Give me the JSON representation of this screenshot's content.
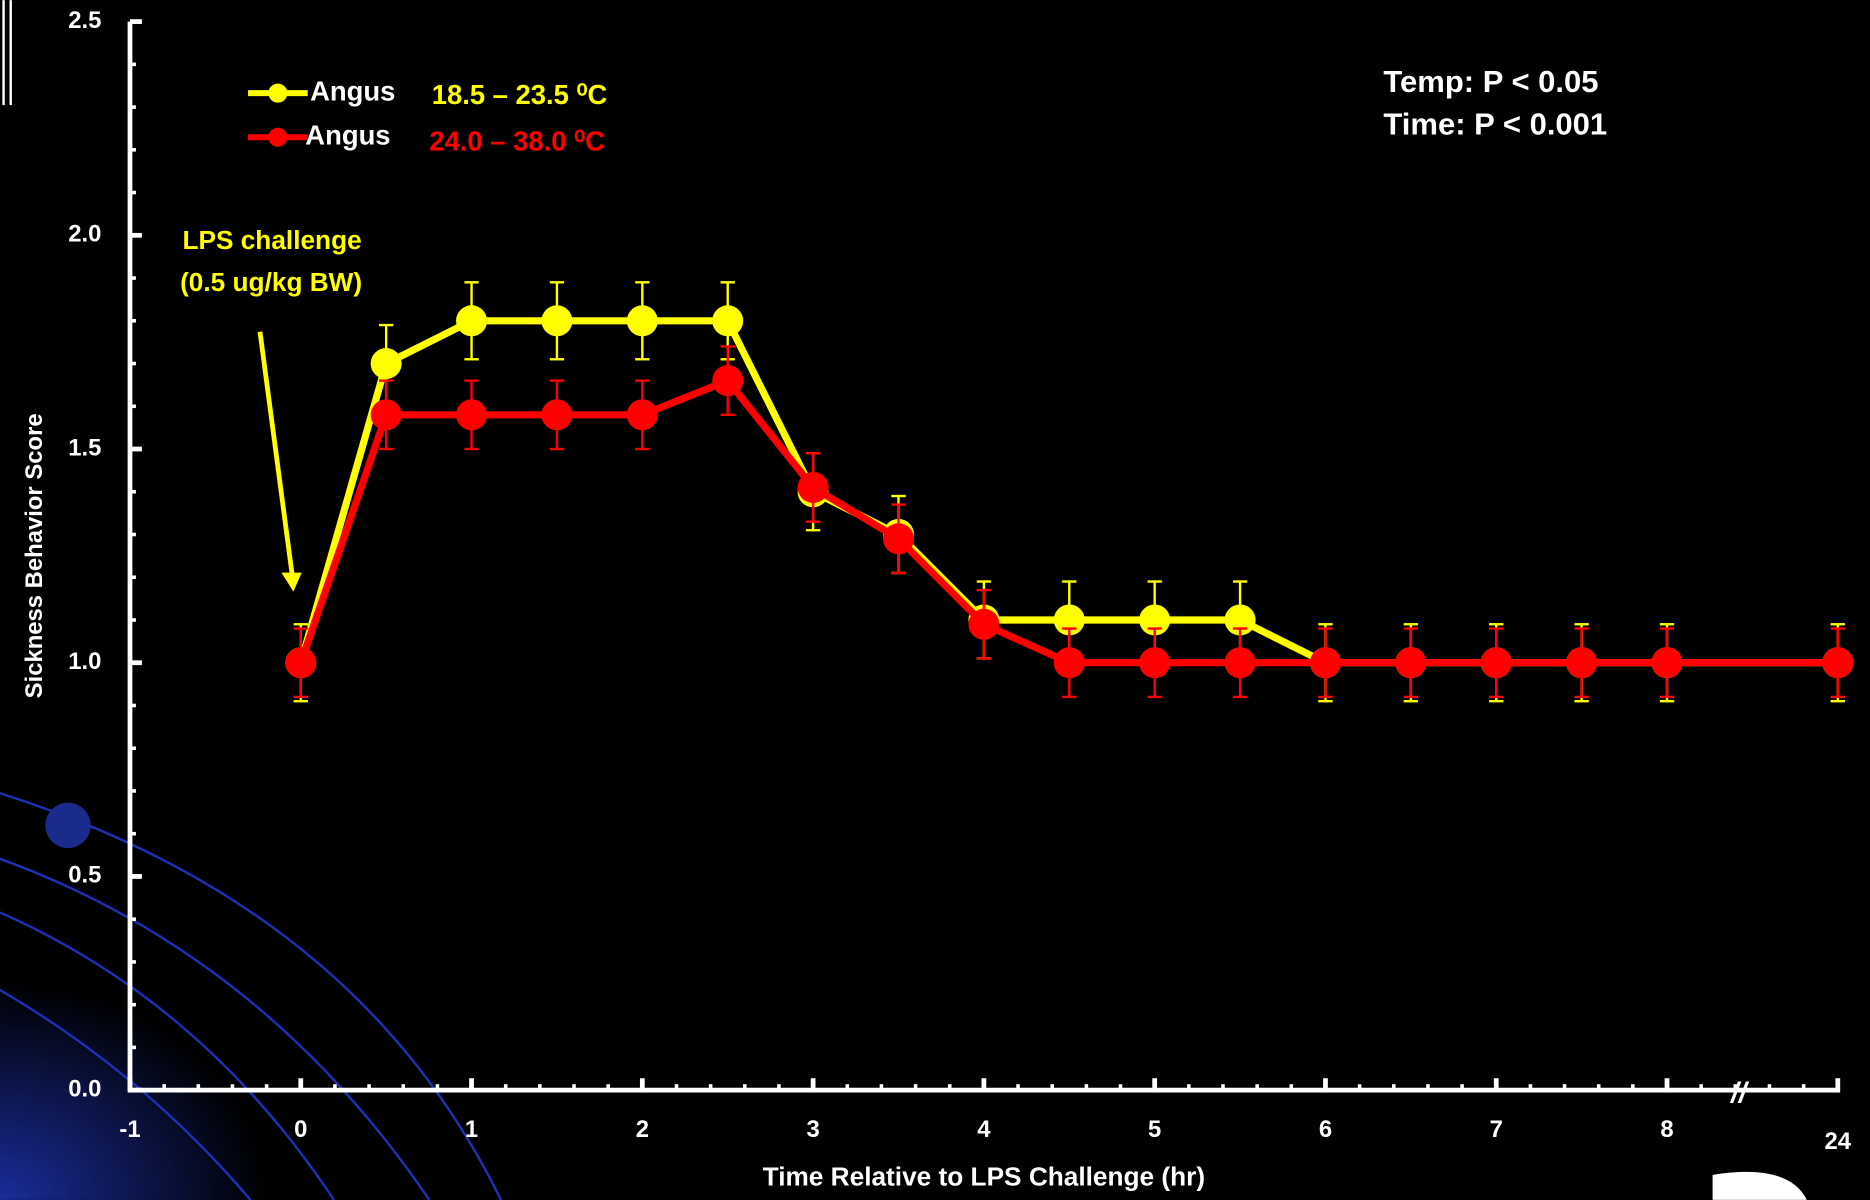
{
  "chart_data": {
    "type": "line",
    "x_label": "Time Relative to LPS Challenge (hr)",
    "y_label": "Sickness Behavior Score",
    "x": [
      0,
      0.5,
      1,
      1.5,
      2,
      2.5,
      3,
      3.5,
      4,
      4.5,
      5,
      5.5,
      6,
      6.5,
      7,
      7.5,
      8,
      24
    ],
    "series": [
      {
        "name": "Angus",
        "condition": "18.5 – 23.5 ⁰C",
        "color": "#ffff00",
        "values": [
          1.0,
          1.7,
          1.8,
          1.8,
          1.8,
          1.8,
          1.4,
          1.3,
          1.1,
          1.1,
          1.1,
          1.1,
          1.0,
          1.0,
          1.0,
          1.0,
          1.0,
          1.0
        ],
        "errors": [
          0.09,
          0.09,
          0.09,
          0.09,
          0.09,
          0.09,
          0.09,
          0.09,
          0.09,
          0.09,
          0.09,
          0.09,
          0.09,
          0.09,
          0.09,
          0.09,
          0.09,
          0.09
        ]
      },
      {
        "name": "Angus",
        "condition": "24.0 – 38.0 ⁰C",
        "color": "#ff0000",
        "values": [
          1.0,
          1.58,
          1.58,
          1.58,
          1.58,
          1.66,
          1.41,
          1.29,
          1.09,
          1.0,
          1.0,
          1.0,
          1.0,
          1.0,
          1.0,
          1.0,
          1.0,
          1.0
        ],
        "errors": [
          0.08,
          0.08,
          0.08,
          0.08,
          0.08,
          0.08,
          0.08,
          0.08,
          0.08,
          0.08,
          0.08,
          0.08,
          0.08,
          0.08,
          0.08,
          0.08,
          0.08,
          0.08
        ]
      }
    ],
    "xlim": [
      -1,
      24
    ],
    "xticks": [
      -1,
      0,
      1,
      2,
      3,
      4,
      5,
      6,
      7,
      8,
      24
    ],
    "ylim": [
      0,
      2.5
    ],
    "yticks": [
      {
        "value": 0,
        "label": "0.0"
      },
      0.5,
      {
        "value": 1,
        "label": "1.0"
      },
      1.5,
      {
        "value": 2,
        "label": "2.0"
      },
      2.5
    ],
    "annotations": [
      "LPS challenge",
      "(0.5 ug/kg BW)"
    ],
    "stats": [
      "Temp: P < 0.05",
      "Time: P < 0.001"
    ]
  }
}
